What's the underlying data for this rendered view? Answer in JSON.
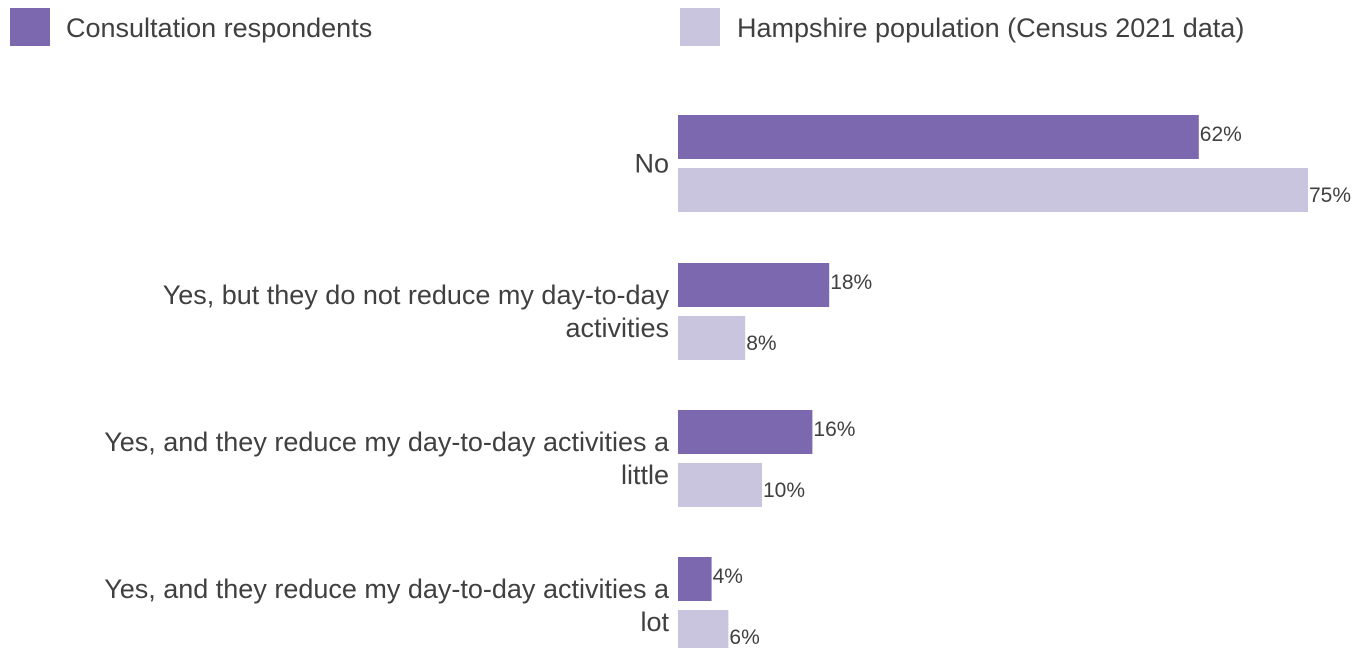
{
  "chart_data": {
    "type": "bar",
    "orientation": "horizontal",
    "categories": [
      [
        "No"
      ],
      [
        "Yes, but they do not reduce my day-to-day",
        "activities"
      ],
      [
        "Yes, and they reduce my day-to-day activities a",
        "little"
      ],
      [
        "Yes, and they reduce my day-to-day activities a",
        "lot"
      ]
    ],
    "series": [
      {
        "name": "Consultation respondents",
        "values": [
          62,
          18,
          16,
          4
        ],
        "labels": [
          "62%",
          "18%",
          "16%",
          "4%"
        ],
        "color": "#7b68ae"
      },
      {
        "name": "Hampshire population (Census 2021 data)",
        "values": [
          75,
          8,
          10,
          6
        ],
        "labels": [
          "75%",
          "8%",
          "10%",
          "6%"
        ],
        "color": "#cac5df"
      }
    ],
    "xlim": [
      0,
      100
    ],
    "grid": false,
    "legend_position": "top"
  }
}
